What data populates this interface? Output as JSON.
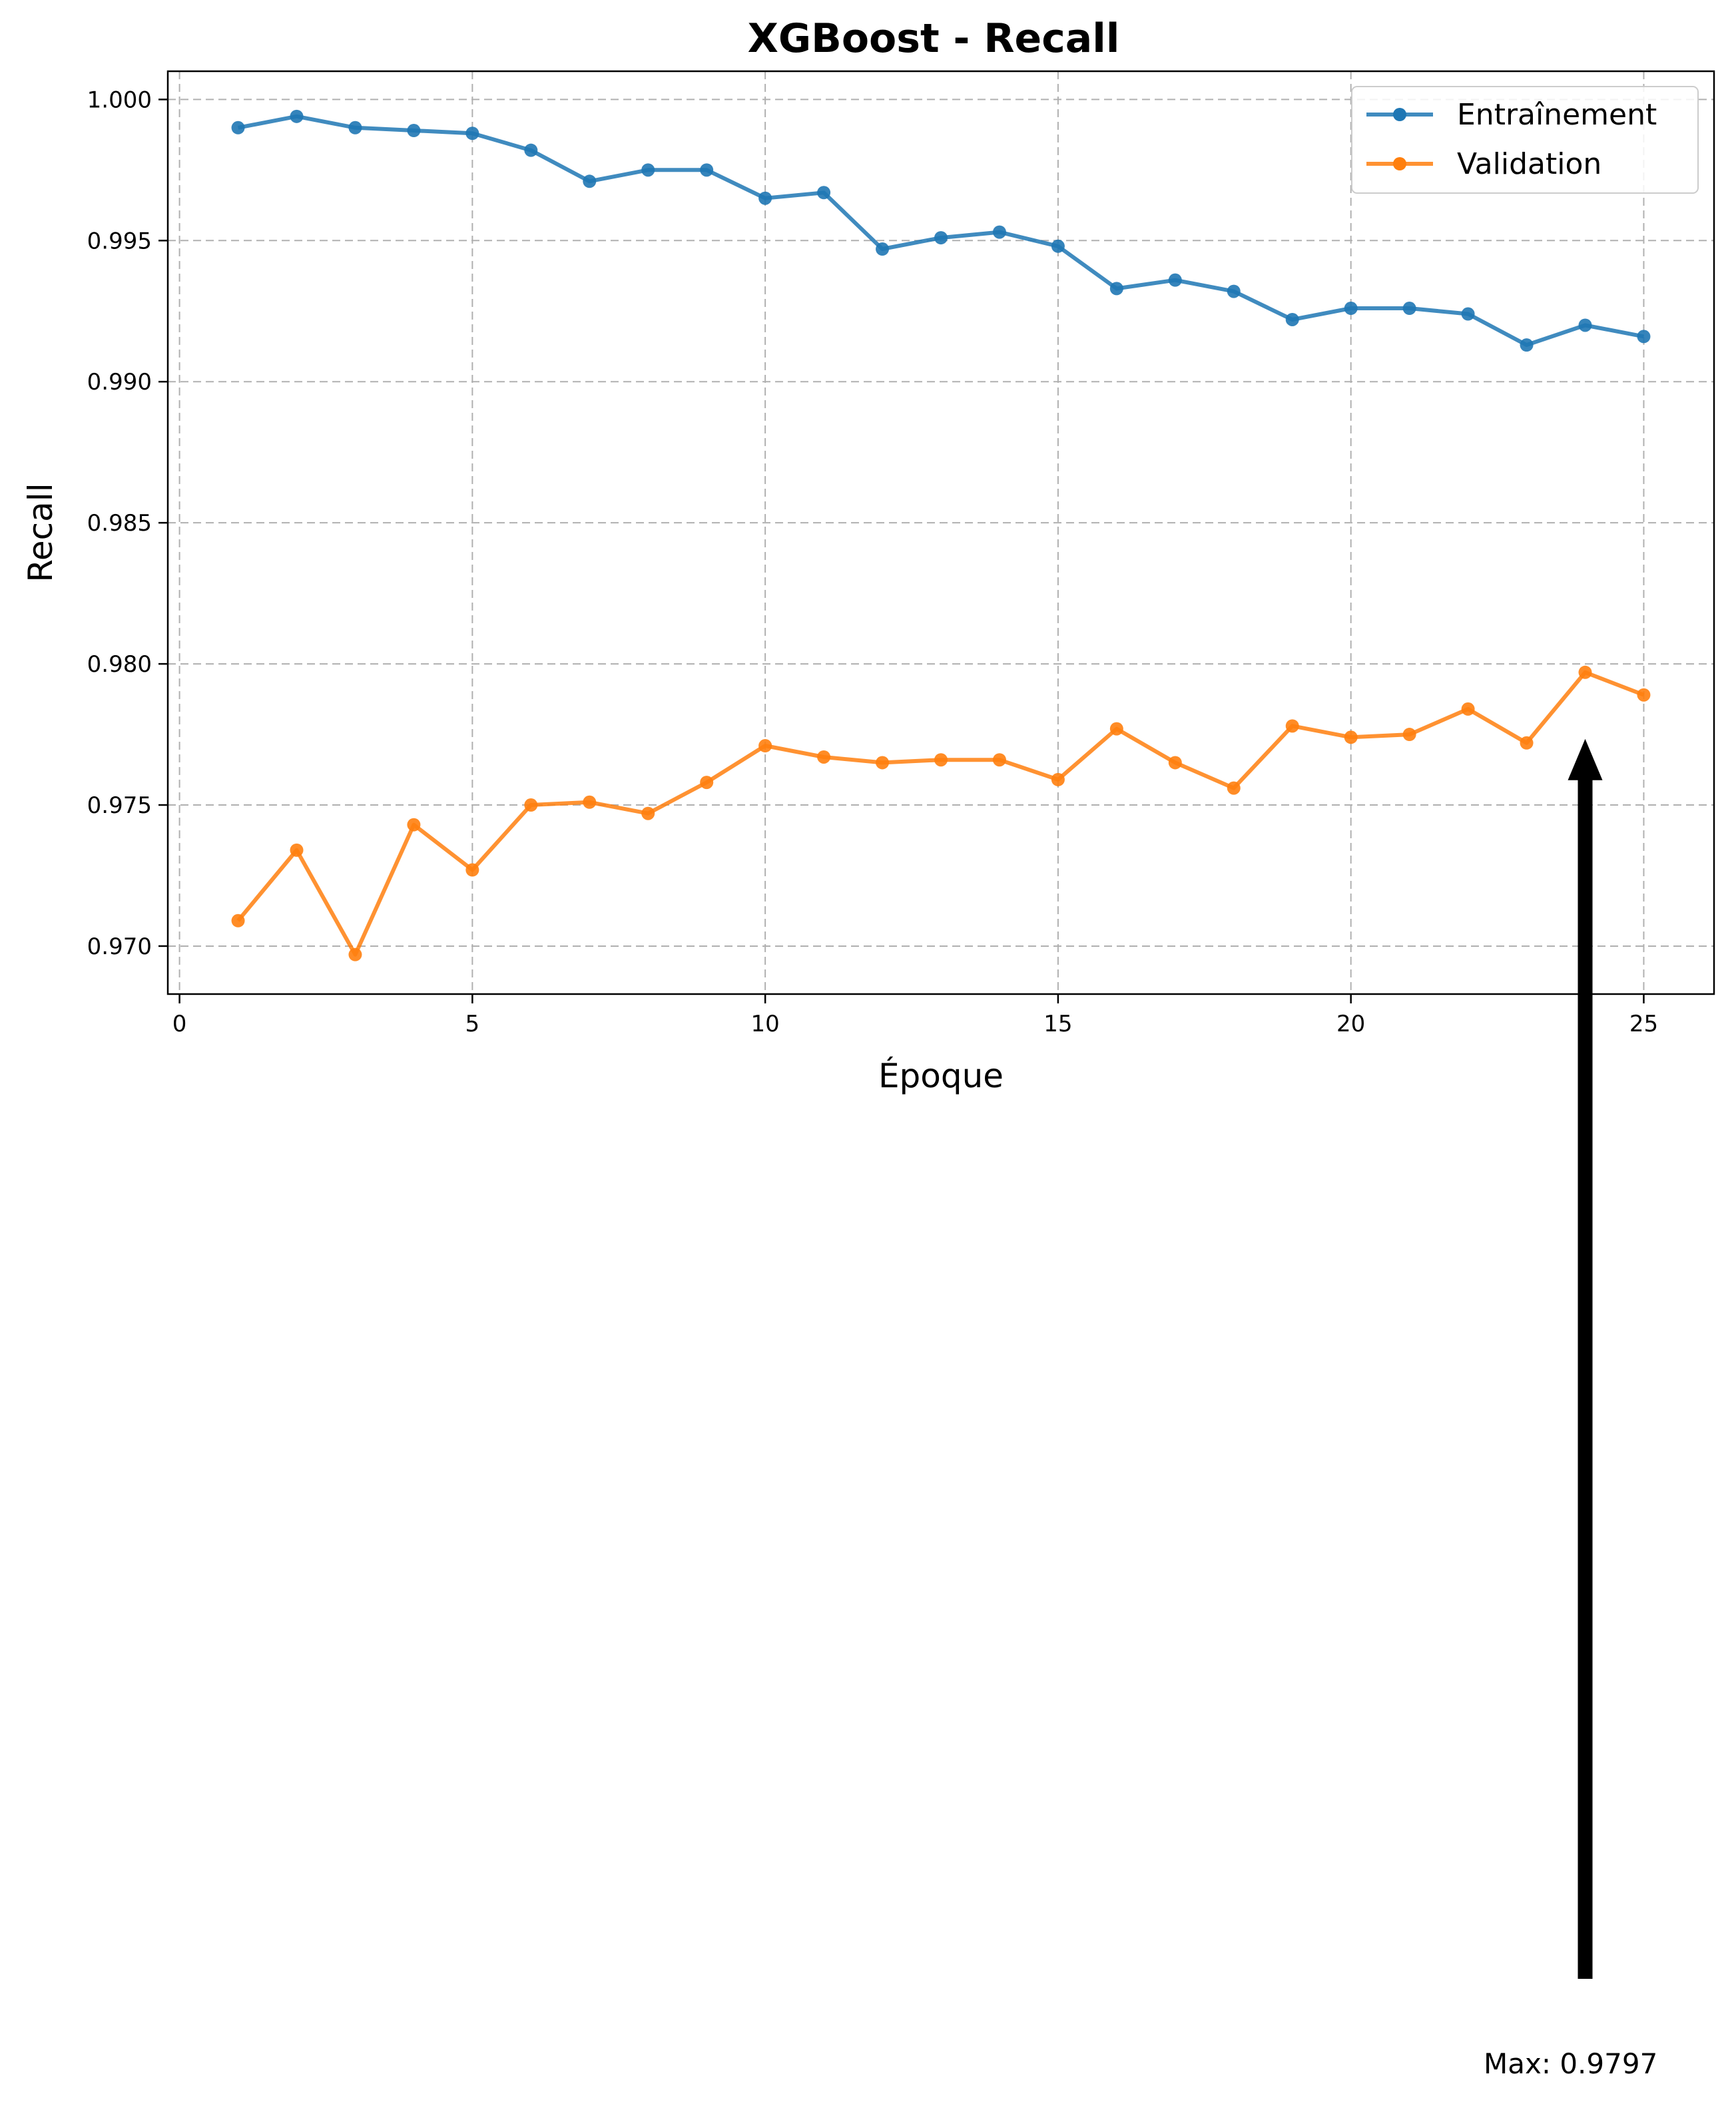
{
  "chart_data": {
    "type": "line",
    "title": "XGBoost - Recall",
    "xlabel": "Époque",
    "ylabel": "Recall",
    "xlim": [
      -0.2,
      26.2
    ],
    "ylim": [
      0.9683,
      1.001
    ],
    "xticks": [
      0,
      5,
      10,
      15,
      20,
      25
    ],
    "yticks": [
      0.97,
      0.975,
      0.98,
      0.985,
      0.99,
      0.995,
      1.0
    ],
    "ytick_labels": [
      "0.970",
      "0.975",
      "0.980",
      "0.985",
      "0.990",
      "0.995",
      "1.000"
    ],
    "grid": true,
    "legend_position": "top-right",
    "x": [
      1,
      2,
      3,
      4,
      5,
      6,
      7,
      8,
      9,
      10,
      11,
      12,
      13,
      14,
      15,
      16,
      17,
      18,
      19,
      20,
      21,
      22,
      23,
      24,
      25
    ],
    "series": [
      {
        "name": "Entraînement",
        "color": "#1f77b4",
        "values": [
          0.999,
          0.9994,
          0.999,
          0.9989,
          0.9988,
          0.9982,
          0.9971,
          0.9975,
          0.9975,
          0.9965,
          0.9967,
          0.9947,
          0.9951,
          0.9953,
          0.9948,
          0.9933,
          0.9936,
          0.9932,
          0.9922,
          0.9926,
          0.9926,
          0.9924,
          0.9913,
          0.992,
          0.9916
        ]
      },
      {
        "name": "Validation",
        "color": "#ff7f0e",
        "values": [
          0.9709,
          0.9734,
          0.9697,
          0.9743,
          0.9727,
          0.975,
          0.9751,
          0.9747,
          0.9758,
          0.9771,
          0.9767,
          0.9765,
          0.9766,
          0.9766,
          0.9759,
          0.9777,
          0.9765,
          0.9756,
          0.9778,
          0.9774,
          0.9775,
          0.9784,
          0.9772,
          0.9797,
          0.9789
        ]
      }
    ],
    "annotations": [
      {
        "text": "Max: 0.9797",
        "x": 24,
        "y": 0.9797,
        "arrow": true
      }
    ]
  }
}
